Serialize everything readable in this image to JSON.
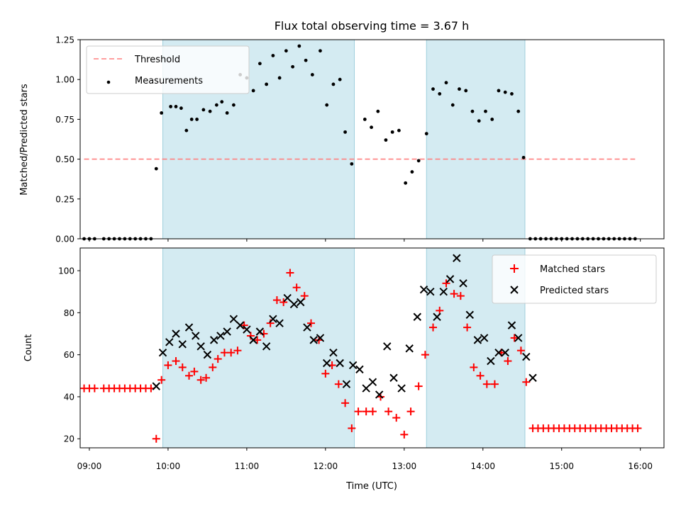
{
  "chart_data": [
    {
      "type": "scatter",
      "title": "Flux total observing time = 3.67 h",
      "ylabel": "Matched/Predicted stars",
      "xlim": [
        "08:53",
        "16:18"
      ],
      "ylim": [
        0,
        1.25
      ],
      "yticks": [
        "0.00",
        "0.25",
        "0.50",
        "0.75",
        "1.00",
        "1.25"
      ],
      "shaded_intervals": [
        [
          "09:56",
          "12:22"
        ],
        [
          "13:17",
          "14:32"
        ]
      ],
      "threshold": {
        "label": "Threshold",
        "value": 0.5,
        "x_range": [
          "08:56",
          "15:56"
        ],
        "color": "#ff7f7f"
      },
      "legend": {
        "placement": "top-left",
        "entries": [
          "Threshold",
          "Measurements"
        ]
      },
      "series": [
        {
          "name": "Measurements",
          "color": "#000000",
          "points": [
            [
              "08:56",
              0
            ],
            [
              "09:00",
              0
            ],
            [
              "09:04",
              0
            ],
            [
              "09:11",
              0
            ],
            [
              "09:15",
              0
            ],
            [
              "09:19",
              0
            ],
            [
              "09:23",
              0
            ],
            [
              "09:27",
              0
            ],
            [
              "09:31",
              0
            ],
            [
              "09:35",
              0
            ],
            [
              "09:39",
              0
            ],
            [
              "09:43",
              0
            ],
            [
              "09:47",
              0
            ],
            [
              "09:51",
              0.44
            ],
            [
              "09:55",
              0.79
            ],
            [
              "10:02",
              0.83
            ],
            [
              "10:06",
              0.83
            ],
            [
              "10:10",
              0.82
            ],
            [
              "10:14",
              0.68
            ],
            [
              "10:18",
              0.75
            ],
            [
              "10:22",
              0.75
            ],
            [
              "10:27",
              0.81
            ],
            [
              "10:32",
              0.8
            ],
            [
              "10:37",
              0.84
            ],
            [
              "10:41",
              0.86
            ],
            [
              "10:45",
              0.79
            ],
            [
              "10:50",
              0.84
            ],
            [
              "10:55",
              1.03
            ],
            [
              "11:00",
              1.01
            ],
            [
              "11:05",
              0.93
            ],
            [
              "11:10",
              1.1
            ],
            [
              "11:15",
              0.97
            ],
            [
              "11:20",
              1.15
            ],
            [
              "11:25",
              1.01
            ],
            [
              "11:30",
              1.18
            ],
            [
              "11:35",
              1.08
            ],
            [
              "11:40",
              1.21
            ],
            [
              "11:45",
              1.12
            ],
            [
              "11:50",
              1.03
            ],
            [
              "11:56",
              1.18
            ],
            [
              "12:01",
              0.84
            ],
            [
              "12:06",
              0.97
            ],
            [
              "12:11",
              1.0
            ],
            [
              "12:15",
              0.67
            ],
            [
              "12:20",
              0.47
            ],
            [
              "12:30",
              0.75
            ],
            [
              "12:35",
              0.7
            ],
            [
              "12:40",
              0.8
            ],
            [
              "12:46",
              0.62
            ],
            [
              "12:51",
              0.67
            ],
            [
              "12:56",
              0.68
            ],
            [
              "13:01",
              0.35
            ],
            [
              "13:06",
              0.42
            ],
            [
              "13:11",
              0.49
            ],
            [
              "13:17",
              0.66
            ],
            [
              "13:22",
              0.94
            ],
            [
              "13:27",
              0.91
            ],
            [
              "13:32",
              0.98
            ],
            [
              "13:37",
              0.84
            ],
            [
              "13:42",
              0.94
            ],
            [
              "13:47",
              0.93
            ],
            [
              "13:52",
              0.8
            ],
            [
              "13:57",
              0.74
            ],
            [
              "14:02",
              0.8
            ],
            [
              "14:07",
              0.75
            ],
            [
              "14:12",
              0.93
            ],
            [
              "14:17",
              0.92
            ],
            [
              "14:22",
              0.91
            ],
            [
              "14:27",
              0.8
            ],
            [
              "14:31",
              0.51
            ],
            [
              "14:36",
              0
            ],
            [
              "14:40",
              0
            ],
            [
              "14:44",
              0
            ],
            [
              "14:48",
              0
            ],
            [
              "14:52",
              0
            ],
            [
              "14:56",
              0
            ],
            [
              "15:00",
              0
            ],
            [
              "15:04",
              0
            ],
            [
              "15:08",
              0
            ],
            [
              "15:12",
              0
            ],
            [
              "15:16",
              0
            ],
            [
              "15:20",
              0
            ],
            [
              "15:24",
              0
            ],
            [
              "15:28",
              0
            ],
            [
              "15:32",
              0
            ],
            [
              "15:36",
              0
            ],
            [
              "15:40",
              0
            ],
            [
              "15:44",
              0
            ],
            [
              "15:48",
              0
            ],
            [
              "15:52",
              0
            ],
            [
              "15:56",
              0
            ]
          ]
        }
      ]
    },
    {
      "type": "scatter",
      "xlabel": "Time (UTC)",
      "ylabel": "Count",
      "xlim": [
        "08:53",
        "16:18"
      ],
      "ylim": [
        15.7,
        110.8
      ],
      "xticks": [
        "09:00",
        "10:00",
        "11:00",
        "12:00",
        "13:00",
        "14:00",
        "15:00",
        "16:00"
      ],
      "yticks": [
        "20",
        "40",
        "60",
        "80",
        "100"
      ],
      "shaded_intervals": [
        [
          "09:56",
          "12:22"
        ],
        [
          "13:17",
          "14:32"
        ]
      ],
      "legend": {
        "placement": "top-right",
        "entries": [
          "Matched stars",
          "Predicted stars"
        ]
      },
      "series": [
        {
          "name": "Matched stars",
          "marker": "+",
          "color": "#ff0000",
          "points": [
            [
              "08:56",
              44
            ],
            [
              "09:00",
              44
            ],
            [
              "09:04",
              44
            ],
            [
              "09:11",
              44
            ],
            [
              "09:15",
              44
            ],
            [
              "09:19",
              44
            ],
            [
              "09:23",
              44
            ],
            [
              "09:27",
              44
            ],
            [
              "09:31",
              44
            ],
            [
              "09:35",
              44
            ],
            [
              "09:39",
              44
            ],
            [
              "09:43",
              44
            ],
            [
              "09:47",
              44
            ],
            [
              "09:51",
              20
            ],
            [
              "09:55",
              48
            ],
            [
              "10:00",
              55
            ],
            [
              "10:06",
              57
            ],
            [
              "10:11",
              54
            ],
            [
              "10:16",
              50
            ],
            [
              "10:20",
              52
            ],
            [
              "10:25",
              48
            ],
            [
              "10:29",
              49
            ],
            [
              "10:34",
              54
            ],
            [
              "10:38",
              58
            ],
            [
              "10:43",
              61
            ],
            [
              "10:48",
              61
            ],
            [
              "10:53",
              62
            ],
            [
              "10:58",
              74
            ],
            [
              "11:03",
              69
            ],
            [
              "11:08",
              67
            ],
            [
              "11:13",
              70
            ],
            [
              "11:18",
              75
            ],
            [
              "11:23",
              86
            ],
            [
              "11:28",
              85
            ],
            [
              "11:33",
              99
            ],
            [
              "11:38",
              92
            ],
            [
              "11:44",
              88
            ],
            [
              "11:49",
              75
            ],
            [
              "11:55",
              67
            ],
            [
              "12:00",
              51
            ],
            [
              "12:05",
              55
            ],
            [
              "12:10",
              46
            ],
            [
              "12:15",
              37
            ],
            [
              "12:20",
              25
            ],
            [
              "12:25",
              33
            ],
            [
              "12:31",
              33
            ],
            [
              "12:36",
              33
            ],
            [
              "12:42",
              40
            ],
            [
              "12:48",
              33
            ],
            [
              "12:54",
              30
            ],
            [
              "13:00",
              22
            ],
            [
              "13:05",
              33
            ],
            [
              "13:11",
              45
            ],
            [
              "13:16",
              60
            ],
            [
              "13:22",
              73
            ],
            [
              "13:27",
              81
            ],
            [
              "13:32",
              94
            ],
            [
              "13:38",
              89
            ],
            [
              "13:43",
              88
            ],
            [
              "13:48",
              73
            ],
            [
              "13:53",
              54
            ],
            [
              "13:58",
              50
            ],
            [
              "14:03",
              46
            ],
            [
              "14:09",
              46
            ],
            [
              "14:14",
              61
            ],
            [
              "14:19",
              57
            ],
            [
              "14:24",
              68
            ],
            [
              "14:29",
              62
            ],
            [
              "14:33",
              47
            ],
            [
              "14:38",
              25
            ],
            [
              "14:42",
              25
            ],
            [
              "14:46",
              25
            ],
            [
              "14:50",
              25
            ],
            [
              "14:54",
              25
            ],
            [
              "14:58",
              25
            ],
            [
              "15:02",
              25
            ],
            [
              "15:06",
              25
            ],
            [
              "15:10",
              25
            ],
            [
              "15:14",
              25
            ],
            [
              "15:18",
              25
            ],
            [
              "15:22",
              25
            ],
            [
              "15:26",
              25
            ],
            [
              "15:30",
              25
            ],
            [
              "15:34",
              25
            ],
            [
              "15:38",
              25
            ],
            [
              "15:42",
              25
            ],
            [
              "15:46",
              25
            ],
            [
              "15:50",
              25
            ],
            [
              "15:54",
              25
            ],
            [
              "15:58",
              25
            ]
          ]
        },
        {
          "name": "Predicted stars",
          "marker": "x",
          "color": "#000000",
          "points": [
            [
              "09:51",
              45
            ],
            [
              "09:56",
              61
            ],
            [
              "10:01",
              66
            ],
            [
              "10:06",
              70
            ],
            [
              "10:11",
              65
            ],
            [
              "10:16",
              73
            ],
            [
              "10:21",
              69
            ],
            [
              "10:25",
              64
            ],
            [
              "10:30",
              60
            ],
            [
              "10:35",
              67
            ],
            [
              "10:40",
              69
            ],
            [
              "10:45",
              71
            ],
            [
              "10:50",
              77
            ],
            [
              "10:55",
              74
            ],
            [
              "11:00",
              72
            ],
            [
              "11:05",
              67
            ],
            [
              "11:10",
              71
            ],
            [
              "11:15",
              64
            ],
            [
              "11:20",
              77
            ],
            [
              "11:25",
              75
            ],
            [
              "11:31",
              87
            ],
            [
              "11:36",
              84
            ],
            [
              "11:41",
              85
            ],
            [
              "11:46",
              73
            ],
            [
              "11:51",
              67
            ],
            [
              "11:56",
              68
            ],
            [
              "12:01",
              56
            ],
            [
              "12:06",
              61
            ],
            [
              "12:11",
              56
            ],
            [
              "12:16",
              46
            ],
            [
              "12:21",
              55
            ],
            [
              "12:26",
              53
            ],
            [
              "12:31",
              44
            ],
            [
              "12:36",
              47
            ],
            [
              "12:41",
              41
            ],
            [
              "12:47",
              64
            ],
            [
              "12:52",
              49
            ],
            [
              "12:58",
              44
            ],
            [
              "13:04",
              63
            ],
            [
              "13:10",
              78
            ],
            [
              "13:15",
              91
            ],
            [
              "13:20",
              90
            ],
            [
              "13:25",
              78
            ],
            [
              "13:30",
              90
            ],
            [
              "13:35",
              96
            ],
            [
              "13:40",
              106
            ],
            [
              "13:45",
              94
            ],
            [
              "13:50",
              79
            ],
            [
              "13:56",
              67
            ],
            [
              "14:01",
              68
            ],
            [
              "14:06",
              57
            ],
            [
              "14:12",
              61
            ],
            [
              "14:17",
              61
            ],
            [
              "14:22",
              74
            ],
            [
              "14:27",
              68
            ],
            [
              "14:33",
              59
            ],
            [
              "14:38",
              49
            ]
          ]
        }
      ]
    }
  ]
}
